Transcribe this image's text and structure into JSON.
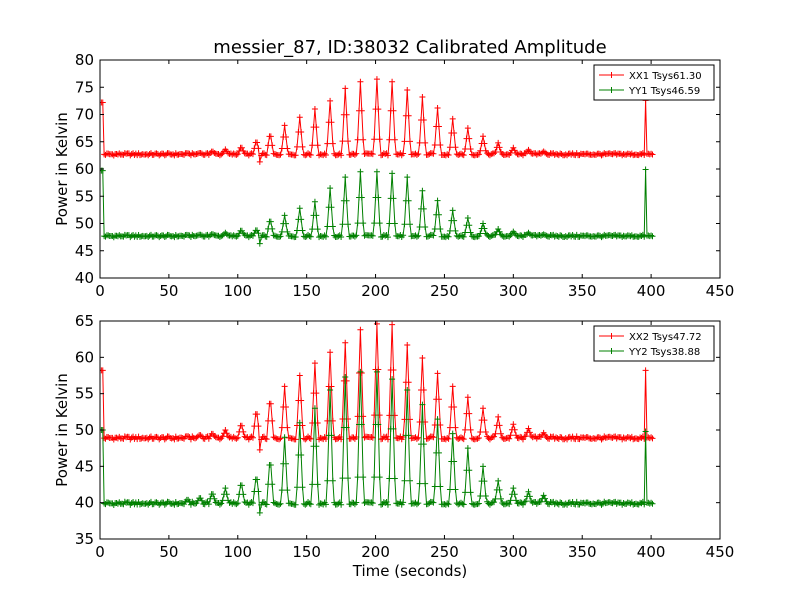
{
  "figure": {
    "title": "messier_87, ID:38032 Calibrated Amplitude",
    "xlabel": "Time (seconds)"
  },
  "chart_data": [
    {
      "type": "line",
      "title": "messier_87, ID:38032 Calibrated Amplitude",
      "xlabel": "",
      "ylabel": "Power in Kelvin",
      "xlim": [
        0,
        450
      ],
      "ylim": [
        40,
        80
      ],
      "xticks": [
        0,
        50,
        100,
        150,
        200,
        250,
        300,
        350,
        400,
        450
      ],
      "yticks": [
        40,
        45,
        50,
        55,
        60,
        65,
        70,
        75,
        80
      ],
      "grid": false,
      "legend_position": "top-right",
      "marker": "+",
      "sample_interval_s": 1,
      "series": [
        {
          "name": "XX1 Tsys61.30",
          "color": "#ff0000",
          "baseline": 62.7,
          "start": {
            "x": 2,
            "value": 72.2
          },
          "end": {
            "x": 396,
            "value": 72.6
          },
          "dip": {
            "x": 114,
            "value": 58.5
          },
          "peaks": [
            [
              63.5,
              62.9
            ],
            [
              72.5,
              63.0
            ],
            [
              81.5,
              63.3
            ],
            [
              91.0,
              63.6
            ],
            [
              102.5,
              64.2
            ],
            [
              113.5,
              65.4
            ],
            [
              123.5,
              66.8
            ],
            [
              134.0,
              68.0
            ],
            [
              145.0,
              69.5
            ],
            [
              156.0,
              71.0
            ],
            [
              167.0,
              72.5
            ],
            [
              178.0,
              74.8
            ],
            [
              189.0,
              76.0
            ],
            [
              201.0,
              76.5
            ],
            [
              212.0,
              76.0
            ],
            [
              223.0,
              74.5
            ],
            [
              234.0,
              73.2
            ],
            [
              245.0,
              71.2
            ],
            [
              256.0,
              69.2
            ],
            [
              267.0,
              67.5
            ],
            [
              278.0,
              66.0
            ],
            [
              289.0,
              64.8
            ],
            [
              300.0,
              63.9
            ],
            [
              311.0,
              63.5
            ],
            [
              322.0,
              63.2
            ]
          ]
        },
        {
          "name": "YY1 Tsys46.59",
          "color": "#008000",
          "baseline": 47.7,
          "start": {
            "x": 2,
            "value": 59.7
          },
          "end": {
            "x": 396,
            "value": 59.9
          },
          "dip": {
            "x": 114,
            "value": 43.5
          },
          "peaks": [
            [
              63.5,
              47.9
            ],
            [
              72.5,
              48.0
            ],
            [
              81.5,
              48.1
            ],
            [
              91.0,
              48.3
            ],
            [
              102.5,
              48.9
            ],
            [
              113.5,
              49.0
            ],
            [
              123.5,
              51.0
            ],
            [
              134.0,
              51.5
            ],
            [
              145.0,
              52.8
            ],
            [
              156.0,
              54.0
            ],
            [
              167.0,
              56.5
            ],
            [
              178.0,
              58.5
            ],
            [
              189.0,
              59.5
            ],
            [
              201.0,
              59.5
            ],
            [
              212.0,
              59.2
            ],
            [
              223.0,
              58.5
            ],
            [
              234.0,
              56.0
            ],
            [
              245.0,
              54.2
            ],
            [
              256.0,
              52.4
            ],
            [
              267.0,
              51.0
            ],
            [
              278.0,
              50.0
            ],
            [
              289.0,
              49.0
            ],
            [
              300.0,
              48.5
            ],
            [
              311.0,
              48.3
            ],
            [
              322.0,
              48.0
            ]
          ]
        }
      ]
    },
    {
      "type": "line",
      "title": "",
      "xlabel": "Time (seconds)",
      "ylabel": "Power in Kelvin",
      "xlim": [
        0,
        450
      ],
      "ylim": [
        35,
        65
      ],
      "xticks": [
        0,
        50,
        100,
        150,
        200,
        250,
        300,
        350,
        400,
        450
      ],
      "yticks": [
        35,
        40,
        45,
        50,
        55,
        60,
        65
      ],
      "grid": false,
      "legend_position": "top-right",
      "marker": "+",
      "sample_interval_s": 1,
      "series": [
        {
          "name": "XX2 Tsys47.72",
          "color": "#ff0000",
          "baseline": 48.9,
          "start": {
            "x": 2,
            "value": 58.2
          },
          "end": {
            "x": 396,
            "value": 58.2
          },
          "dip": {
            "x": 114,
            "value": 44.0
          },
          "peaks": [
            [
              63.5,
              49.2
            ],
            [
              72.5,
              49.4
            ],
            [
              81.5,
              49.6
            ],
            [
              91.0,
              50.0
            ],
            [
              102.5,
              51.0
            ],
            [
              113.5,
              53.0
            ],
            [
              123.5,
              54.8
            ],
            [
              134.0,
              56.0
            ],
            [
              145.0,
              57.5
            ],
            [
              156.0,
              59.2
            ],
            [
              167.0,
              60.7
            ],
            [
              178.0,
              62.0
            ],
            [
              189.0,
              63.8
            ],
            [
              201.0,
              64.6
            ],
            [
              212.0,
              64.5
            ],
            [
              223.0,
              61.7
            ],
            [
              234.0,
              59.9
            ],
            [
              245.0,
              57.8
            ],
            [
              256.0,
              56.0
            ],
            [
              267.0,
              54.5
            ],
            [
              278.0,
              53.0
            ],
            [
              289.0,
              51.8
            ],
            [
              300.0,
              50.8
            ],
            [
              311.0,
              50.2
            ],
            [
              322.0,
              49.6
            ]
          ]
        },
        {
          "name": "YY2 Tsys38.88",
          "color": "#008000",
          "baseline": 39.9,
          "start": {
            "x": 2,
            "value": 50.0
          },
          "end": {
            "x": 396,
            "value": 49.8
          },
          "dip": {
            "x": 114,
            "value": 36.0
          },
          "peaks": [
            [
              63.5,
              40.5
            ],
            [
              72.5,
              40.8
            ],
            [
              81.5,
              41.5
            ],
            [
              91.0,
              42.0
            ],
            [
              102.5,
              43.0
            ],
            [
              113.5,
              44.0
            ],
            [
              123.5,
              46.5
            ],
            [
              134.0,
              49.0
            ],
            [
              145.0,
              51.0
            ],
            [
              156.0,
              53.0
            ],
            [
              167.0,
              55.5
            ],
            [
              178.0,
              57.3
            ],
            [
              189.0,
              58.0
            ],
            [
              201.0,
              58.0
            ],
            [
              212.0,
              57.0
            ],
            [
              223.0,
              55.5
            ],
            [
              234.0,
              53.5
            ],
            [
              245.0,
              51.5
            ],
            [
              256.0,
              49.5
            ],
            [
              267.0,
              47.5
            ],
            [
              278.0,
              45.0
            ],
            [
              289.0,
              43.0
            ],
            [
              300.0,
              42.0
            ],
            [
              311.0,
              41.5
            ],
            [
              322.0,
              41.0
            ]
          ]
        }
      ]
    }
  ]
}
